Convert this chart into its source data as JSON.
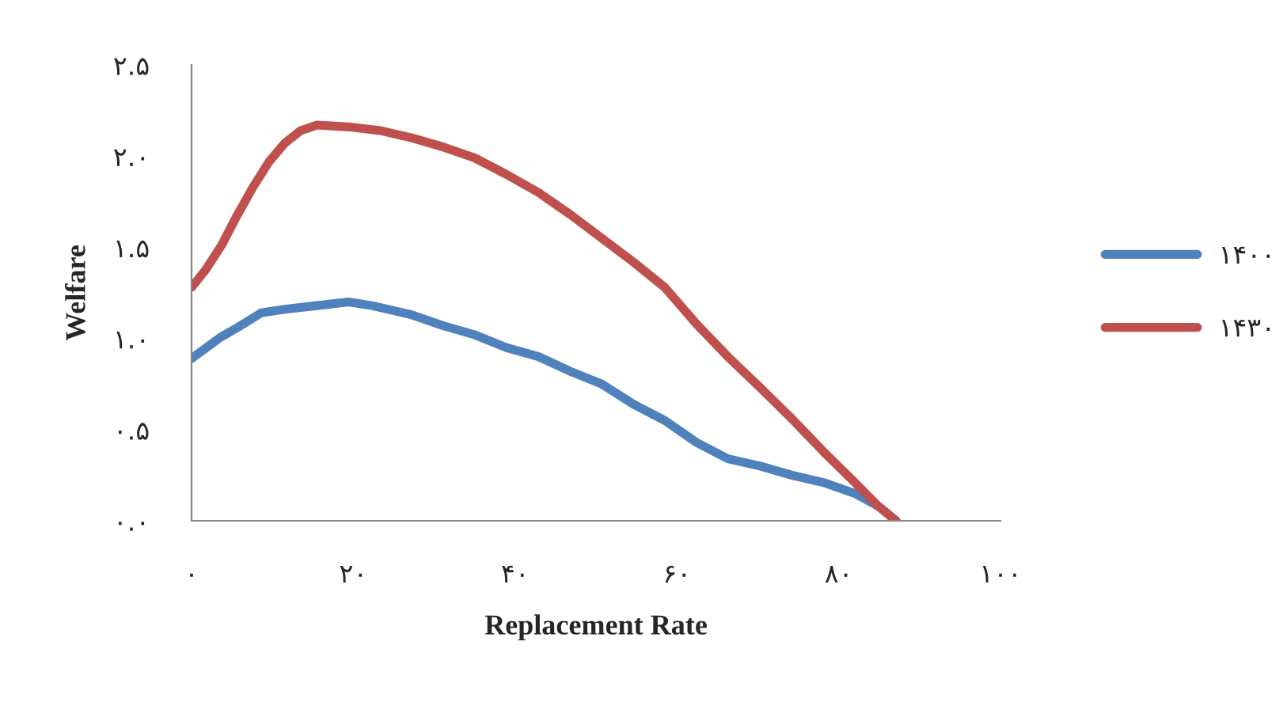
{
  "chart_data": {
    "type": "line",
    "xlabel": "Replacement Rate",
    "ylabel": "Welfare",
    "xlim": [
      0,
      100
    ],
    "ylim": [
      0,
      2.5
    ],
    "xticks": [
      {
        "value": 0,
        "label": "۰"
      },
      {
        "value": 20,
        "label": "۲۰"
      },
      {
        "value": 40,
        "label": "۴۰"
      },
      {
        "value": 60,
        "label": "۶۰"
      },
      {
        "value": 80,
        "label": "۸۰"
      },
      {
        "value": 100,
        "label": "۱۰۰"
      }
    ],
    "yticks": [
      {
        "value": 0,
        "label": "۰.۰"
      },
      {
        "value": 0.5,
        "label": "۰.۵"
      },
      {
        "value": 1,
        "label": "۱.۰"
      },
      {
        "value": 1.5,
        "label": "۱.۵"
      },
      {
        "value": 2,
        "label": "۲.۰"
      },
      {
        "value": 2.5,
        "label": "۲.۵"
      }
    ],
    "grid": false,
    "legend": "right",
    "marker": "none",
    "line_style": "solid",
    "series": [
      {
        "name": "۱۴۰۰",
        "color": "#4f81bd",
        "x": [
          0,
          3.7,
          5.7,
          8.6,
          11.5,
          15.5,
          19.4,
          22.3,
          27.2,
          31.1,
          35,
          38.9,
          42.9,
          46.8,
          50.7,
          54.6,
          58.5,
          62.4,
          66.3,
          70.3,
          74.2,
          78.1,
          82,
          84.9,
          87.1
        ],
        "values": [
          0.89,
          1.01,
          1.06,
          1.14,
          1.16,
          1.18,
          1.2,
          1.18,
          1.13,
          1.07,
          1.02,
          0.95,
          0.9,
          0.82,
          0.75,
          0.64,
          0.55,
          0.43,
          0.34,
          0.3,
          0.25,
          0.21,
          0.15,
          0.08,
          0
        ]
      },
      {
        "name": "۱۴۳۰",
        "color": "#c0504d",
        "x": [
          0,
          1.8,
          3.7,
          5.7,
          7.6,
          9.6,
          11.5,
          13.5,
          15.5,
          19.4,
          23.3,
          27.2,
          31.1,
          35,
          38.9,
          42.9,
          46.8,
          50.7,
          54.6,
          58.5,
          62.4,
          66.3,
          70.3,
          74.2,
          78.1,
          82,
          84.9,
          87.1
        ],
        "values": [
          1.28,
          1.38,
          1.51,
          1.68,
          1.83,
          1.97,
          2.07,
          2.14,
          2.17,
          2.16,
          2.14,
          2.1,
          2.05,
          1.99,
          1.9,
          1.8,
          1.68,
          1.55,
          1.42,
          1.28,
          1.08,
          0.9,
          0.73,
          0.56,
          0.38,
          0.21,
          0.08,
          0
        ]
      }
    ]
  }
}
